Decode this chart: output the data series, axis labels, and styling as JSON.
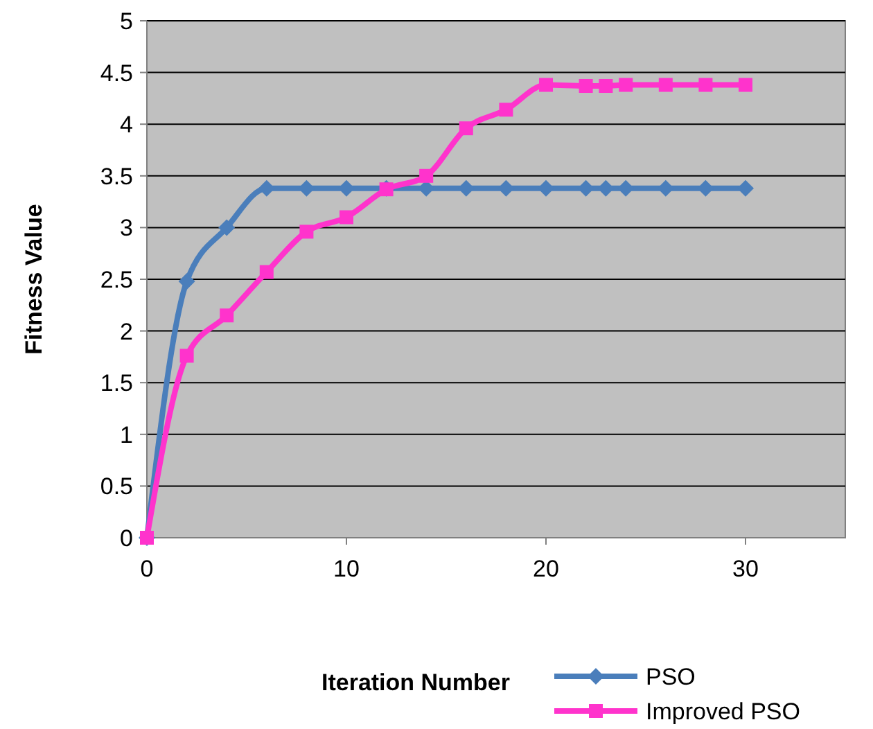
{
  "chart_data": {
    "type": "line",
    "xlabel": "Iteration Number",
    "ylabel": "Fitness Value",
    "xlim": [
      0,
      35
    ],
    "xticks": [
      0,
      10,
      20,
      30
    ],
    "ylim": [
      0,
      5
    ],
    "yticks": [
      0,
      0.5,
      1,
      1.5,
      2,
      2.5,
      3,
      3.5,
      4,
      4.5,
      5
    ],
    "grid": "y",
    "legend": "bottom right",
    "x": [
      0,
      2,
      4,
      6,
      8,
      10,
      12,
      14,
      16,
      18,
      20,
      22,
      23,
      24,
      26,
      28,
      30
    ],
    "series": [
      {
        "name": "PSO",
        "color": "#4a7ebb",
        "marker": "diamond",
        "values": [
          0,
          2.48,
          3.0,
          3.38,
          3.38,
          3.38,
          3.38,
          3.38,
          3.38,
          3.38,
          3.38,
          3.38,
          3.38,
          3.38,
          3.38,
          3.38,
          3.38
        ]
      },
      {
        "name": "Improved PSO",
        "color": "#ff33cc",
        "marker": "square",
        "values": [
          0,
          1.76,
          2.15,
          2.57,
          2.96,
          3.1,
          3.37,
          3.5,
          3.96,
          4.14,
          4.38,
          4.37,
          4.37,
          4.38,
          4.38,
          4.38,
          4.38
        ]
      }
    ]
  }
}
